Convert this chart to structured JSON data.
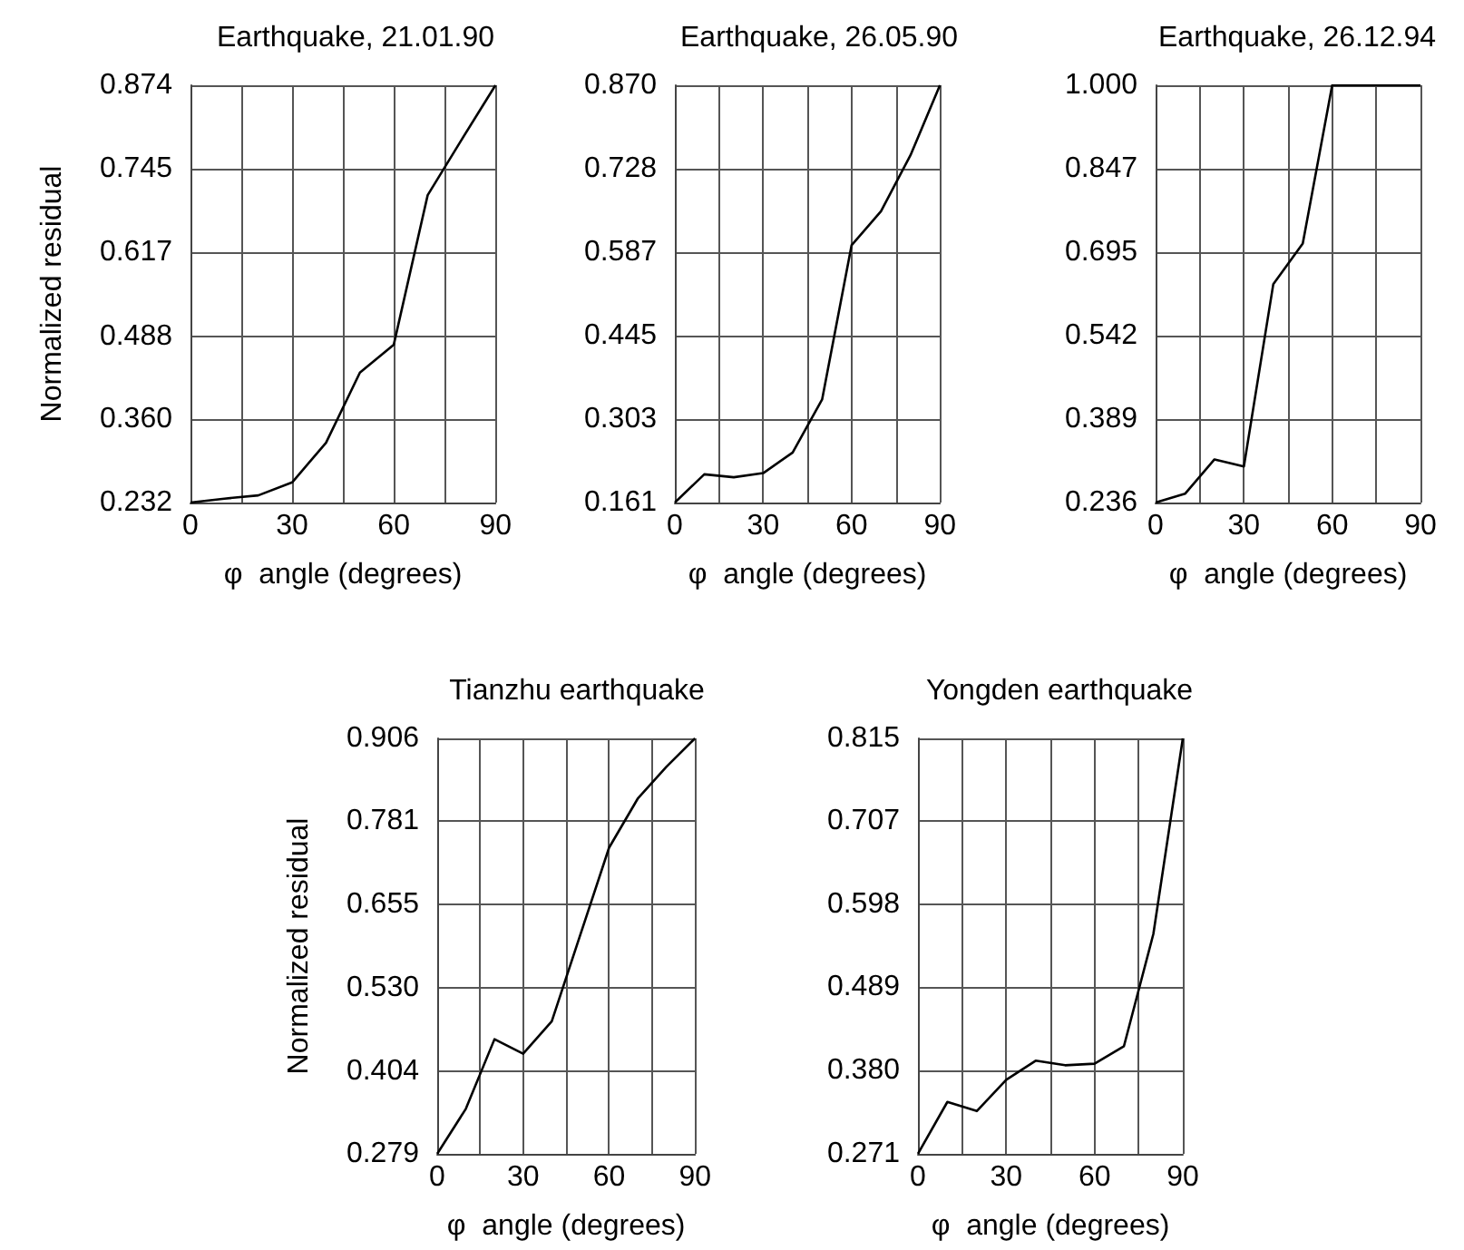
{
  "chart_data": [
    {
      "type": "line",
      "title": "Earthquake, 21.01.90",
      "xlabel": "φ  angle (degrees)",
      "ylabel": "Normalized residual",
      "x": [
        0,
        10,
        20,
        30,
        40,
        50,
        60,
        70,
        80,
        90
      ],
      "series": [
        {
          "color": "#000000",
          "values": [
            0.232,
            0.238,
            0.243,
            0.263,
            0.324,
            0.432,
            0.475,
            0.705,
            0.79,
            0.874
          ]
        }
      ],
      "xlim": [
        0,
        90
      ],
      "xticks": [
        0,
        {
          "value": 15,
          "label": null
        },
        30,
        {
          "value": 45,
          "label": null
        },
        60,
        {
          "value": 75,
          "label": null
        },
        90
      ],
      "ylim": [
        0.232,
        0.874
      ],
      "yticks": [
        0.232,
        {
          "value": 0.36,
          "label": "0.360"
        },
        0.488,
        0.617,
        0.745,
        0.874
      ],
      "grid": true,
      "marker": "none",
      "line_style": "solid"
    },
    {
      "type": "line",
      "title": "Earthquake, 26.05.90",
      "xlabel": "φ  angle (degrees)",
      "x": [
        0,
        10,
        20,
        30,
        40,
        50,
        60,
        70,
        80,
        90
      ],
      "series": [
        {
          "color": "#000000",
          "values": [
            0.161,
            0.209,
            0.204,
            0.211,
            0.246,
            0.336,
            0.598,
            0.656,
            0.751,
            0.87
          ]
        }
      ],
      "xlim": [
        0,
        90
      ],
      "xticks": [
        0,
        {
          "value": 15,
          "label": null
        },
        30,
        {
          "value": 45,
          "label": null
        },
        60,
        {
          "value": 75,
          "label": null
        },
        90
      ],
      "ylim": [
        0.161,
        0.87
      ],
      "yticks": [
        0.161,
        0.303,
        0.445,
        0.587,
        0.728,
        {
          "value": 0.87,
          "label": "0.870"
        }
      ],
      "grid": true,
      "marker": "none",
      "line_style": "solid"
    },
    {
      "type": "line",
      "title": "Earthquake, 26.12.94",
      "xlabel": "φ  angle (degrees)",
      "x": [
        0,
        10,
        20,
        30,
        40,
        50,
        60,
        70,
        80,
        90
      ],
      "series": [
        {
          "color": "#000000",
          "values": [
            0.236,
            0.252,
            0.315,
            0.302,
            0.636,
            0.71,
            1.0,
            1.0,
            1.0,
            1.0
          ]
        }
      ],
      "xlim": [
        0,
        90
      ],
      "xticks": [
        0,
        {
          "value": 15,
          "label": null
        },
        30,
        {
          "value": 45,
          "label": null
        },
        60,
        {
          "value": 75,
          "label": null
        },
        90
      ],
      "ylim": [
        0.236,
        1.0
      ],
      "yticks": [
        0.236,
        0.389,
        0.542,
        0.695,
        0.847,
        {
          "value": 1.0,
          "label": "1.000"
        }
      ],
      "grid": true,
      "marker": "none",
      "line_style": "solid"
    },
    {
      "type": "line",
      "title": "Tianzhu earthquake",
      "xlabel": "φ  angle (degrees)",
      "ylabel": "Normalized residual",
      "x": [
        0,
        10,
        20,
        30,
        40,
        50,
        60,
        70,
        80,
        90
      ],
      "series": [
        {
          "color": "#000000",
          "values": [
            0.279,
            0.347,
            0.452,
            0.43,
            0.479,
            0.61,
            0.741,
            0.815,
            0.863,
            0.906
          ]
        }
      ],
      "xlim": [
        0,
        90
      ],
      "xticks": [
        0,
        {
          "value": 15,
          "label": null
        },
        30,
        {
          "value": 45,
          "label": null
        },
        60,
        {
          "value": 75,
          "label": null
        },
        90
      ],
      "ylim": [
        0.279,
        0.906
      ],
      "yticks": [
        0.279,
        0.404,
        {
          "value": 0.53,
          "label": "0.530"
        },
        0.655,
        0.781,
        0.906
      ],
      "grid": true,
      "marker": "none",
      "line_style": "solid"
    },
    {
      "type": "line",
      "title": "Yongden earthquake",
      "xlabel": "φ  angle (degrees)",
      "x": [
        0,
        10,
        20,
        30,
        40,
        50,
        60,
        70,
        80,
        90
      ],
      "series": [
        {
          "color": "#000000",
          "values": [
            0.271,
            0.339,
            0.327,
            0.368,
            0.393,
            0.387,
            0.389,
            0.412,
            0.559,
            0.815
          ]
        }
      ],
      "xlim": [
        0,
        90
      ],
      "xticks": [
        0,
        {
          "value": 15,
          "label": null
        },
        30,
        {
          "value": 45,
          "label": null
        },
        60,
        {
          "value": 75,
          "label": null
        },
        90
      ],
      "ylim": [
        0.271,
        0.815
      ],
      "yticks": [
        0.271,
        {
          "value": 0.38,
          "label": "0.380"
        },
        0.489,
        0.598,
        0.707,
        0.815
      ],
      "grid": true,
      "marker": "none",
      "line_style": "solid"
    }
  ]
}
